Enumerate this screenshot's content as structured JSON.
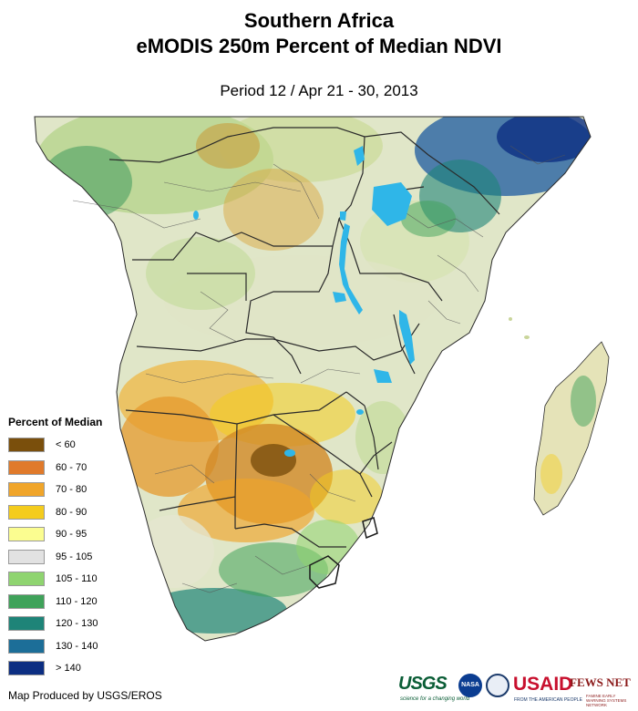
{
  "title": {
    "line1": "Southern Africa",
    "line2": "eMODIS 250m Percent of Median NDVI"
  },
  "subtitle": "Period 12 / Apr 21 - 30, 2013",
  "legend": {
    "title": "Percent of Median",
    "items": [
      {
        "label": "< 60",
        "color": "#7a4f0c"
      },
      {
        "label": "60 - 70",
        "color": "#e07a2b"
      },
      {
        "label": "70 - 80",
        "color": "#f0a52a"
      },
      {
        "label": "80 - 90",
        "color": "#f4cc1d"
      },
      {
        "label": "90 - 95",
        "color": "#fbfd90"
      },
      {
        "label": "95 - 105",
        "color": "#e2e2e2"
      },
      {
        "label": "105 - 110",
        "color": "#8fd470"
      },
      {
        "label": "110 - 120",
        "color": "#3fa25a"
      },
      {
        "label": "120 - 130",
        "color": "#1e8478"
      },
      {
        "label": "130 - 140",
        "color": "#1c6e98"
      },
      {
        "label": "> 140",
        "color": "#0c2e82"
      }
    ]
  },
  "credit": "Map Produced by USGS/EROS",
  "logos": {
    "usgs": "USGS",
    "usgs_tagline": "science for a changing world",
    "nasa": "NASA",
    "usaid": "USAID",
    "usaid_tagline": "FROM THE AMERICAN PEOPLE",
    "fews": "FEWS NET",
    "fews_tagline": "FAMINE EARLY WARNING SYSTEMS NETWORK"
  },
  "colors": {
    "water": "#2fb6e8",
    "land_base": "#e0e6c8",
    "border": "#2a2a2a"
  }
}
